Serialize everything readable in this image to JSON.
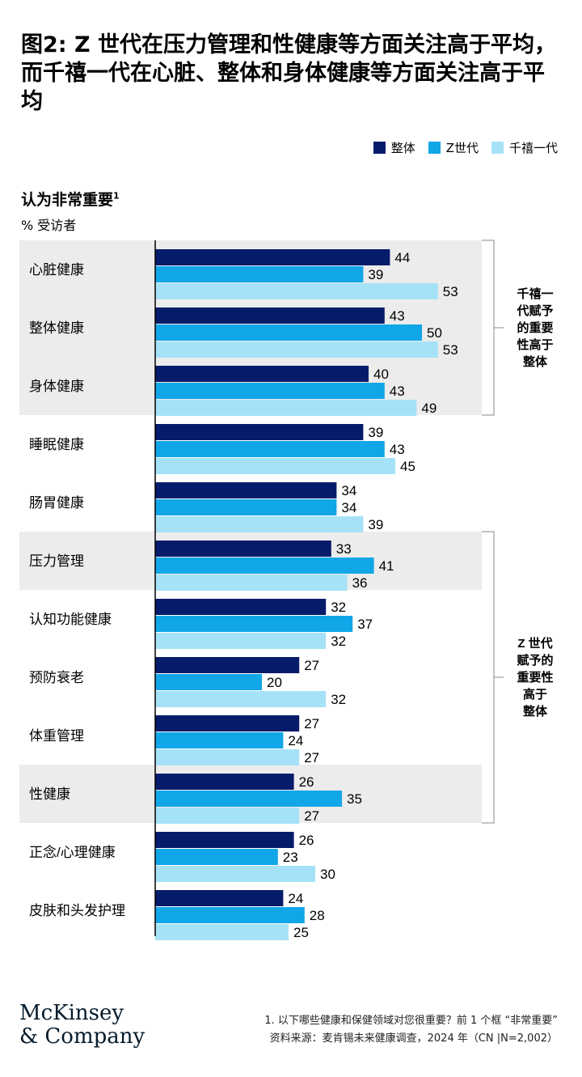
{
  "title": "图2: Z 世代在压力管理和性健康等方面关注高于平均，而千禧一代在心脏、整体和身体健康等方面关注高于平均",
  "legend": [
    {
      "label": "整体",
      "color": "#051c6b"
    },
    {
      "label": "Z世代",
      "color": "#11a6e8"
    },
    {
      "label": "千禧一代",
      "color": "#a6e2f7"
    }
  ],
  "chart_data": {
    "type": "bar",
    "orientation": "horizontal",
    "title": "认为非常重要",
    "title_superscript": "1",
    "unit_label": "% 受访者",
    "categories": [
      "心脏健康",
      "整体健康",
      "身体健康",
      "睡眠健康",
      "肠胃健康",
      "压力管理",
      "认知功能健康",
      "预防衰老",
      "体重管理",
      "性健康",
      "正念/心理健康",
      "皮肤和头发护理"
    ],
    "series": [
      {
        "name": "整体",
        "color": "#051c6b",
        "values": [
          44,
          43,
          40,
          39,
          34,
          33,
          32,
          27,
          27,
          26,
          26,
          24
        ]
      },
      {
        "name": "Z世代",
        "color": "#11a6e8",
        "values": [
          39,
          50,
          43,
          43,
          34,
          41,
          37,
          20,
          24,
          35,
          23,
          28
        ]
      },
      {
        "name": "千禧一代",
        "color": "#a6e2f7",
        "values": [
          53,
          53,
          49,
          45,
          39,
          36,
          32,
          32,
          27,
          27,
          30,
          25
        ]
      }
    ],
    "xlim": [
      0,
      60
    ],
    "highlight_groups": [
      {
        "label": "千禧一代赋予的重要性高于整体",
        "label_lines": [
          "千禧一",
          "代赋予",
          "的重要",
          "性高于",
          "整体"
        ],
        "categories": [
          "心脏健康",
          "整体健康",
          "身体健康"
        ]
      },
      {
        "label": "Z 世代赋予的重要性高于整体",
        "label_lines": [
          "Z 世代",
          "赋予的",
          "重要性",
          "高于",
          "整体"
        ],
        "categories": [
          "压力管理",
          "性健康"
        ]
      }
    ]
  },
  "logo": {
    "line1": "McKinsey",
    "line2": "& Company"
  },
  "footnote": {
    "note": "1.    以下哪些健康和保健领域对您很重要？前 1 个框 “非常重要”",
    "source": "资料来源：麦肯锡未来健康调查，2024 年（CN |N=2,002）"
  }
}
